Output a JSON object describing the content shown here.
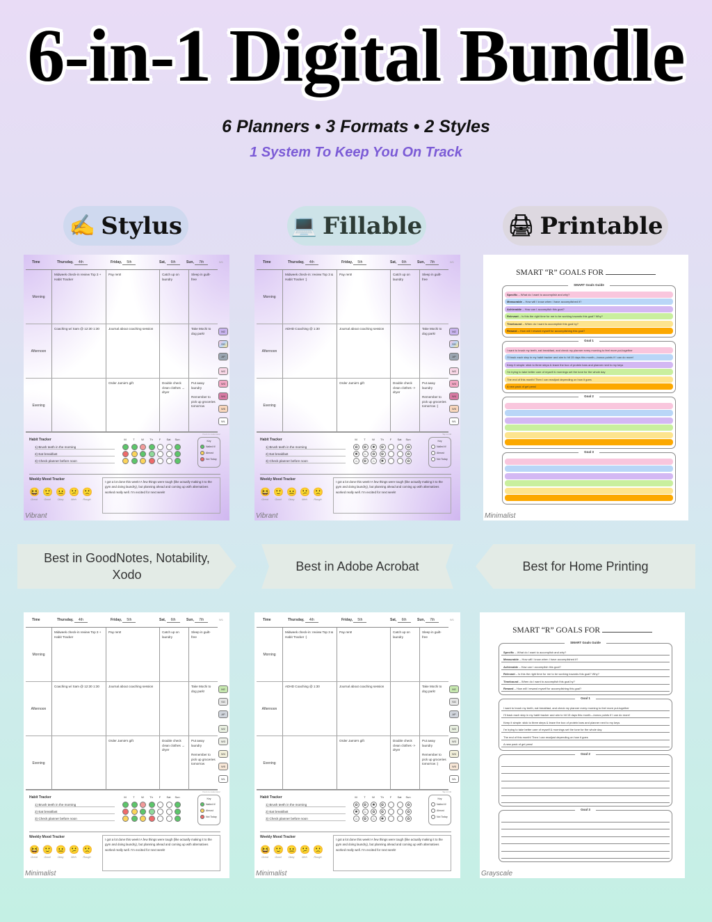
{
  "header": {
    "title": "6-in-1 Digital Bundle",
    "subtitle": "6 Planners • 3 Formats • 2 Styles",
    "tagline": "1 System To Keep You On Track"
  },
  "formats": [
    {
      "label": "Stylus",
      "icon": "writing-hand-icon",
      "glyph": "✍",
      "bg": "#cfd9ef"
    },
    {
      "label": "Fillable",
      "icon": "laptop-icon",
      "glyph": "💻",
      "bg": "#cde3e8"
    },
    {
      "label": "Printable",
      "icon": "printer-icon",
      "glyph": "🖨",
      "bg": "#ddd8e0"
    }
  ],
  "banners": [
    "Best in GoodNotes, Notability, Xodo",
    "Best in Adobe Acrobat",
    "Best for Home Printing"
  ],
  "weekly": {
    "week": "W1",
    "time": "Time",
    "days": [
      {
        "name": "Thursday,",
        "date": "4th"
      },
      {
        "name": "Friday,",
        "date": "5th"
      },
      {
        "name": "Sat,",
        "date": "6th"
      },
      {
        "name": "Sun,",
        "date": "7th"
      }
    ],
    "tabs": [
      "M2",
      "SG",
      "AP",
      "W2",
      "W3",
      "W4",
      "W5",
      "WL"
    ],
    "habit_title": "Habit Tracker",
    "habit_days": [
      "M",
      "T",
      "W",
      "Th",
      "F",
      "Sat",
      "Sun"
    ],
    "key_title": "Key",
    "key_items": [
      "Nailed it!",
      "Almost",
      "Not Today"
    ],
    "mood_title": "Weekly Mood Tracker",
    "moods": [
      "Great",
      "Good",
      "Okay",
      "Meh",
      "Rough"
    ],
    "selected_mood": "Good",
    "stylus": {
      "rows": [
        {
          "label": "Morning",
          "cells": [
            "Midweek check-in review Top 3 + Habit Tracker",
            "Pay rent!",
            "Catch up on laundry",
            "Sleep in guilt-free"
          ]
        },
        {
          "label": "Afternoon",
          "cells": [
            "Coaching w/ Sam @ 12:30 1:30",
            "Journal about coaching session",
            "",
            "Take Mochi to dog park!"
          ]
        },
        {
          "label": "Evening",
          "cells": [
            "",
            "Order Jamie's gift",
            "Double check clean clothes → dryer",
            "Put away laundry\n\nRemember to pick up groceries tomorrow"
          ]
        }
      ],
      "note": "Yours to customize!",
      "habits": [
        "1) Brush teeth in the morning",
        "2) Eat breakfast",
        "3) Check planner before noon"
      ],
      "habit_status": [
        [
          "nailed",
          "nailed",
          "nottoday-light",
          "nailed",
          "",
          "",
          "nailed"
        ],
        [
          "nottoday",
          "almost",
          "nailed",
          "nailed-light",
          "",
          "",
          "nailed"
        ],
        [
          "almost",
          "nailed",
          "almost",
          "nottoday",
          "",
          "",
          "nailed"
        ]
      ],
      "journal": "I got a lot done this week! A few things were tough (like actually making it to the gym and doing laundry), but planning ahead and coming up with alternatives worked really well. I'm excited for next week!"
    },
    "fillable": {
      "rows": [
        {
          "label": "Morning",
          "cells": [
            "Midweek check-in: review Top 3 & Habit Tracker :)",
            "Pay rent!",
            "Catch up on laundry",
            "Sleep in guilt-free"
          ]
        },
        {
          "label": "Afternoon",
          "cells": [
            "ADHD Coaching @ 1:30",
            "Journal about coaching session",
            "",
            "Take Mochi to dog park!"
          ]
        },
        {
          "label": "Evening",
          "cells": [
            "",
            "Order Jamie's gift",
            "Double check clean clothes -> dryer",
            "Put away laundry\n\nRemember to pick up groceries tomorrow :)"
          ]
        }
      ],
      "note": "Tap to Fill",
      "habits": [
        "1) Brush teeth in the morning",
        "2) Eat breakfast",
        "3) Check planner before noon"
      ],
      "habit_status": [
        [
          "nailed",
          "nailed",
          "nottoday",
          "nailed",
          "",
          "",
          "nailed"
        ],
        [
          "nottoday",
          "almost",
          "nailed",
          "nailed",
          "",
          "",
          "nailed"
        ],
        [
          "almost",
          "nailed",
          "almost",
          "nottoday",
          "",
          "",
          "nailed"
        ]
      ],
      "journal": "I got a lot done this week! A few things were tough (like actually making it to the gym and doing laundry), but planning ahead and coming up with alternatives worked really well. I'm excited for next week!"
    }
  },
  "goals": {
    "title": "SMART “R” GOALS FOR",
    "guide_title": "SMART Goals Guide",
    "guide": [
      {
        "term": "Specific",
        "text": " – What do I want to accomplish and why?"
      },
      {
        "term": "Measurable",
        "text": " – How will I know when I have accomplished it?"
      },
      {
        "term": "Achievable",
        "text": " – How can I accomplish this goal?"
      },
      {
        "term": "Relevant",
        "text": " – Is this the right time for me to be working towards this goal? Why?"
      },
      {
        "term": "Timebound",
        "text": " – When do I want to accomplish this goal by?"
      },
      {
        "term": "Reward",
        "text": " – How will I reward myself for accomplishing this goal?"
      }
    ],
    "row_colors": [
      "#f9c6dd",
      "#b9d6f7",
      "#d3b8f3",
      "#c9ef9e",
      "#fde48e",
      "#fca800"
    ],
    "goal_titles": [
      "Goal 1",
      "Goal 2",
      "Goal 3"
    ],
    "goal1": [
      "I want to brush my teeth, eat breakfast, and check my planner every morning to feel more put-together",
      "I'll track each step in my habit tracker and aim to hit 15 days this month—bonus points if I can do more!",
      "Keep it simple: stick to three steps & leave the box of protein bars and planner next to my keys",
      "I'm trying to take better care of myself & mornings set the tone for the whole day",
      "The end of this month! Then I can readjust depending on how it goes",
      "A new pack of gel pens!"
    ]
  },
  "cards": [
    {
      "kind": "planner",
      "content": "stylus",
      "style": "Vibrant"
    },
    {
      "kind": "planner",
      "content": "fillable",
      "style": "Vibrant"
    },
    {
      "kind": "goals",
      "style": "Minimalist"
    },
    {
      "kind": "planner",
      "content": "stylus",
      "style": "Minimalist"
    },
    {
      "kind": "planner",
      "content": "fillable",
      "style": "Minimalist"
    },
    {
      "kind": "goals",
      "style": "Grayscale"
    }
  ],
  "colors": {
    "nailed": "#5cc66a",
    "nailed-light": "#8fd99a",
    "almost": "#fcd45a",
    "nottoday": "#ef6a6a",
    "nottoday-light": "#f29a9a",
    "accent": "#7b5bd6"
  }
}
